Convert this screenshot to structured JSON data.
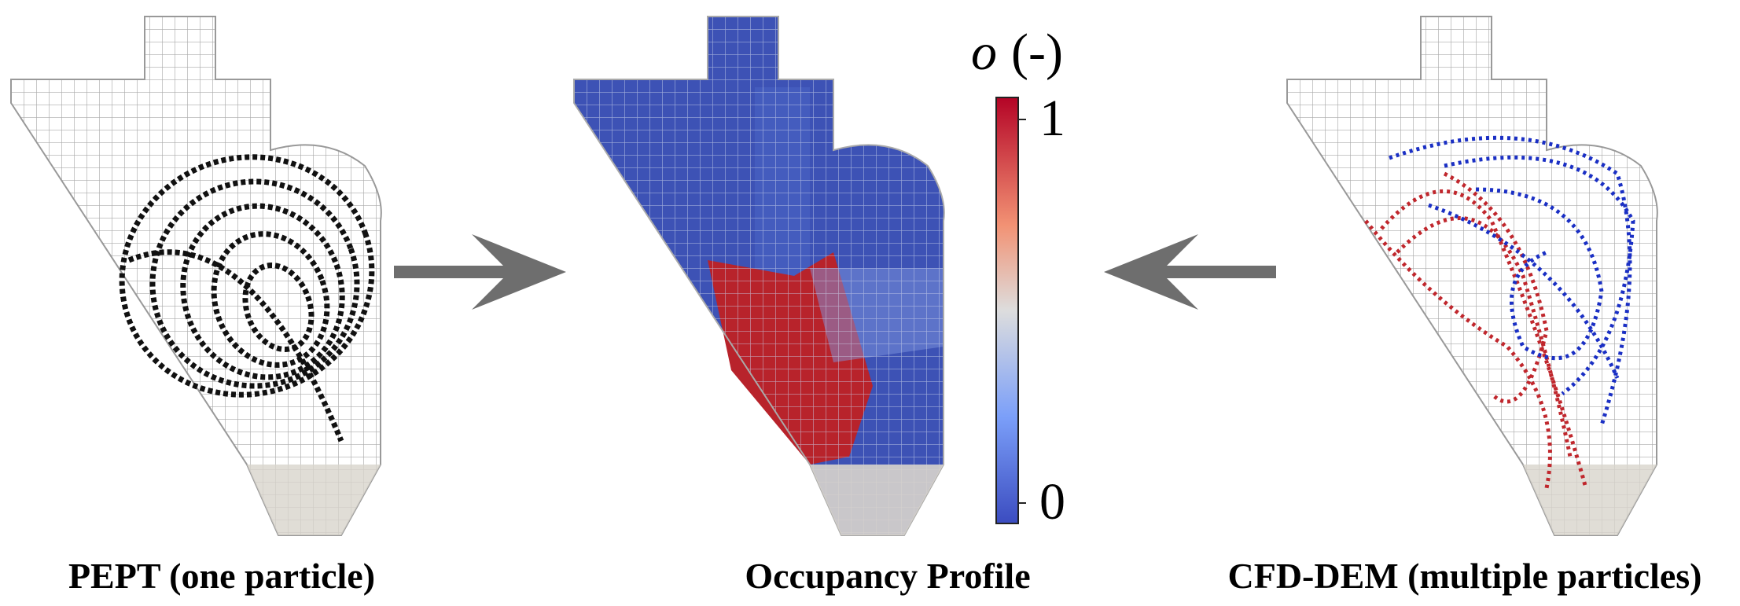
{
  "panels": [
    {
      "label": "PEPT (one particle)"
    },
    {
      "label": "Occupancy Profile"
    },
    {
      "label": "CFD-DEM (multiple particles)"
    }
  ],
  "colorbar": {
    "symbol": "o",
    "unit": "(-)",
    "ticks": [
      1,
      0
    ]
  }
}
